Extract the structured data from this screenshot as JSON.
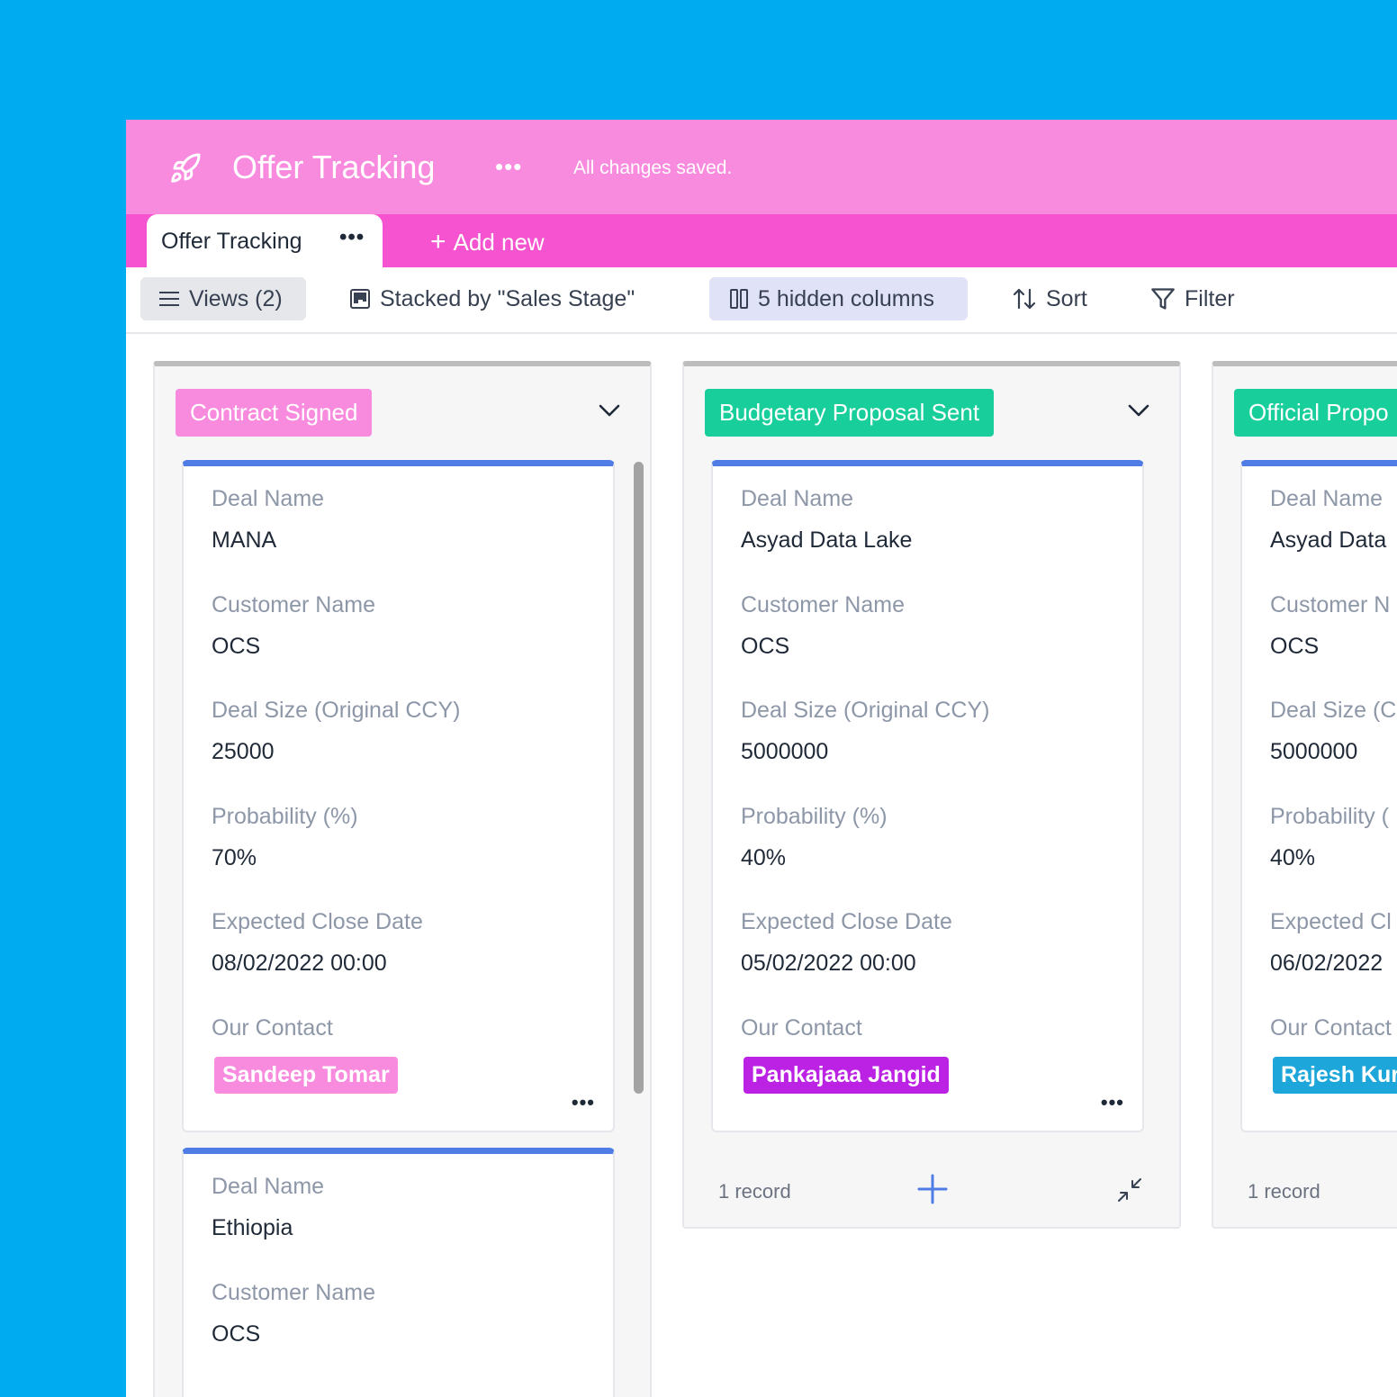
{
  "header": {
    "app_icon": "rocket-icon",
    "title": "Offer Tracking",
    "more": "•••",
    "save_status": "All changes saved."
  },
  "tabs": {
    "active_label": "Offer Tracking",
    "active_more": "•••",
    "add_new_plus": "+",
    "add_new_label": "Add new"
  },
  "toolbar": {
    "views_label": "Views (2)",
    "stacked_label": "Stacked by \"Sales Stage\"",
    "hidden_label": "5 hidden columns",
    "sort_label": "Sort",
    "filter_label": "Filter"
  },
  "colors": {
    "background": "#00ABEF",
    "header_bg": "#F98BDF",
    "tabbar_bg": "#F553CF",
    "card_accent": "#4F7DE5",
    "stage_contract": "#F98BDF",
    "stage_budgetary": "#18CE9B",
    "stage_official": "#18CE9B",
    "contact_sandeep": "#F98BDF",
    "contact_pankajaaa": "#BB22E3",
    "contact_rajesh": "#1DA6D9"
  },
  "columns": [
    {
      "stage": "Contract Signed",
      "cards": [
        {
          "deal_name_label": "Deal Name",
          "deal_name": "MANA",
          "customer_label": "Customer Name",
          "customer": "OCS",
          "size_label": "Deal Size (Original CCY)",
          "size": "25000",
          "prob_label": "Probability (%)",
          "prob": "70%",
          "close_label": "Expected Close Date",
          "close": "08/02/2022 00:00",
          "contact_label": "Our Contact",
          "contact": "Sandeep Tomar",
          "more": "•••"
        },
        {
          "deal_name_label": "Deal Name",
          "deal_name": "Ethiopia",
          "customer_label": "Customer Name",
          "customer": "OCS"
        }
      ]
    },
    {
      "stage": "Budgetary Proposal Sent",
      "cards": [
        {
          "deal_name_label": "Deal Name",
          "deal_name": "Asyad Data Lake",
          "customer_label": "Customer Name",
          "customer": "OCS",
          "size_label": "Deal Size (Original CCY)",
          "size": "5000000",
          "prob_label": "Probability (%)",
          "prob": "40%",
          "close_label": "Expected Close Date",
          "close": "05/02/2022 00:00",
          "contact_label": "Our Contact",
          "contact": "Pankajaaa Jangid",
          "more": "•••"
        }
      ],
      "footer_count": "1 record"
    },
    {
      "stage": "Official Propo",
      "cards": [
        {
          "deal_name_label": "Deal Name",
          "deal_name": "Asyad Data",
          "customer_label": "Customer N",
          "customer": "OCS",
          "size_label": "Deal Size (C",
          "size": "5000000",
          "prob_label": "Probability (",
          "prob": "40%",
          "close_label": "Expected Cl",
          "close": "06/02/2022",
          "contact_label": "Our Contact",
          "contact": "Rajesh Kur"
        }
      ],
      "footer_count": "1 record"
    }
  ]
}
